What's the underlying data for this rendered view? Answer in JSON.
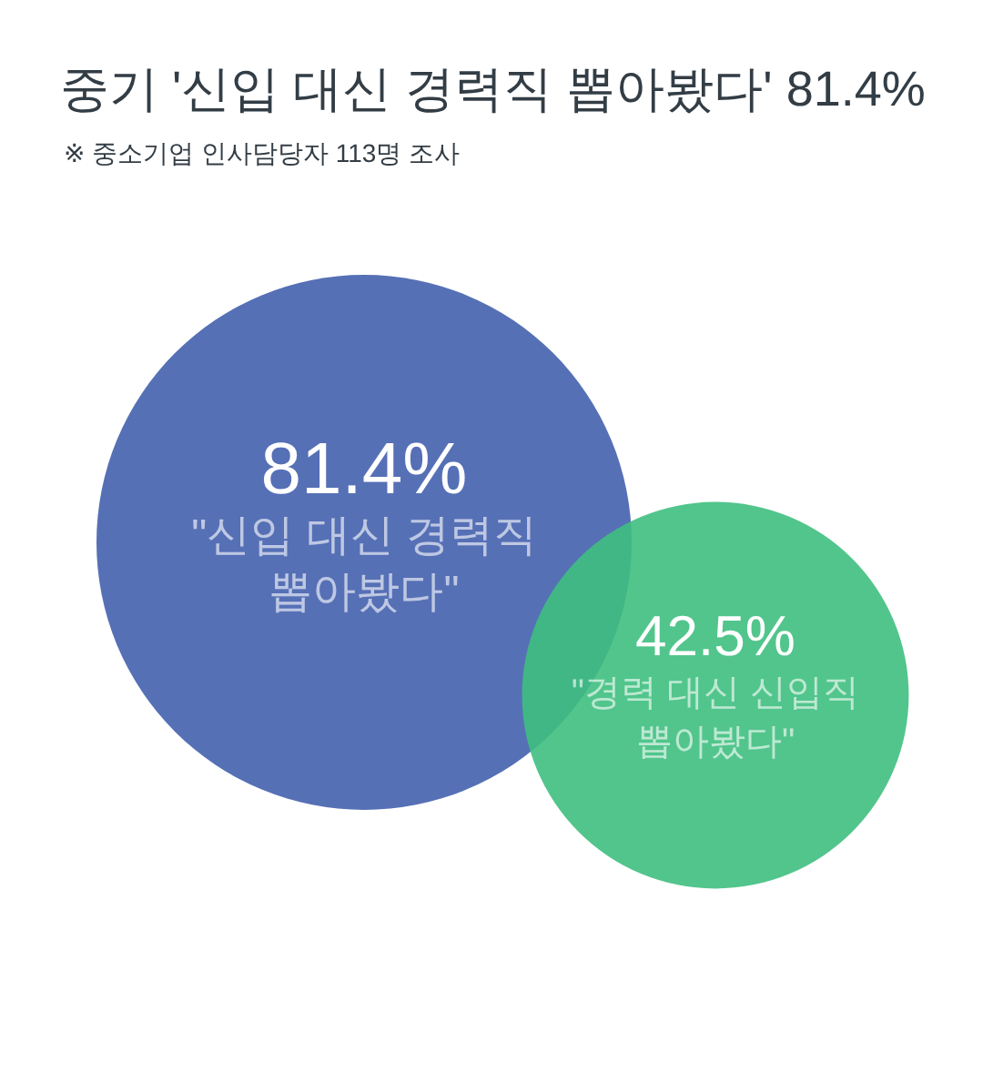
{
  "chart_data": {
    "type": "other",
    "title": "중기 '신입 대신 경력직 뽑아봤다' 81.4%",
    "subtitle": "※ 중소기업 인사담당자 113명 조사",
    "categories": [
      "\"신입 대신 경력직 뽑아봤다\"",
      "\"경력 대신 신입직 뽑아봤다\""
    ],
    "values": [
      81.4,
      42.5
    ],
    "value_labels": [
      "81.4%",
      "42.5%"
    ],
    "colors": [
      "#5670b6",
      "#3fbf7f"
    ]
  }
}
